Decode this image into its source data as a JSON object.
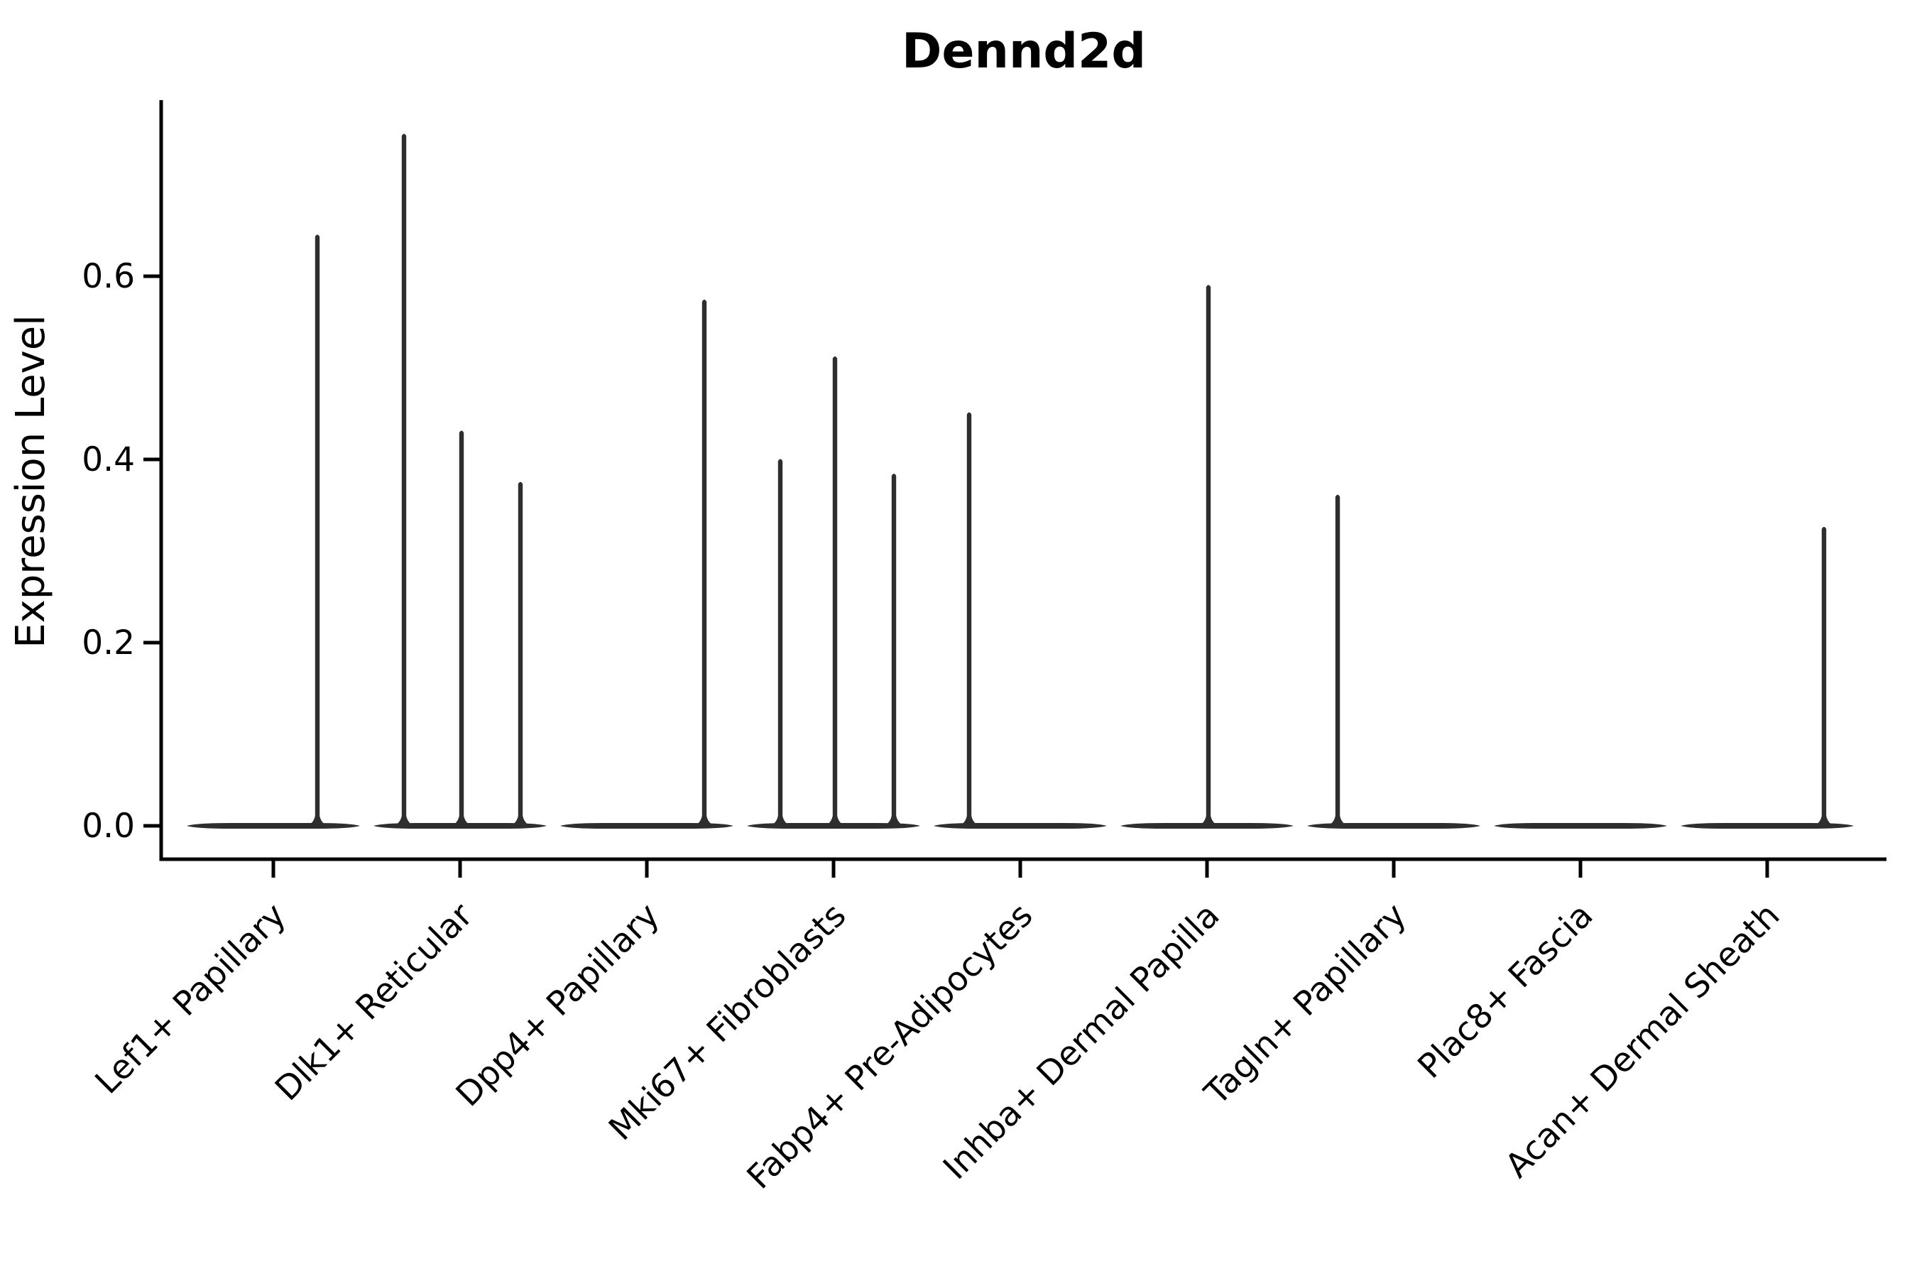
{
  "figure": {
    "kind": "violin-plot"
  },
  "chart_data": {
    "type": "violin",
    "title": "Dennd2d",
    "xlabel": "",
    "ylabel": "Expression Level",
    "categories": [
      "Lef1+ Papillary",
      "Dlk1+ Reticular",
      "Dpp4+ Papillary",
      "Mki67+ Fibroblasts",
      "Fabp4+ Pre-Adipocytes",
      "Inhba+ Dermal Papilla",
      "Tagln+ Papillary",
      "Plac8+ Fascia",
      "Acan+ Dermal Sheath"
    ],
    "yticks": [
      0.0,
      0.2,
      0.4,
      0.6
    ],
    "ytick_labels": [
      "0.0",
      "0.2",
      "0.4",
      "0.6"
    ],
    "ylim": [
      -0.036,
      0.792
    ],
    "grid": false,
    "legend": "none",
    "description": "Each category shows a collapsed violin at expression 0 with thin vertical spikes marking rare expressing cells; spike offset is horizontal jitter in px from the category center, value is the expression level at the spike tip.",
    "spikes": [
      [
        {
          "offset": 62,
          "value": 0.645
        }
      ],
      [
        {
          "offset": -79,
          "value": 0.755
        },
        {
          "offset": 2,
          "value": 0.431
        },
        {
          "offset": 85,
          "value": 0.375
        }
      ],
      [
        {
          "offset": 81,
          "value": 0.574
        }
      ],
      [
        {
          "offset": -75,
          "value": 0.4
        },
        {
          "offset": 2,
          "value": 0.512
        },
        {
          "offset": 85,
          "value": 0.384
        }
      ],
      [
        {
          "offset": -72,
          "value": 0.451
        }
      ],
      [
        {
          "offset": 2,
          "value": 0.59
        }
      ],
      [
        {
          "offset": -79,
          "value": 0.361
        }
      ],
      [],
      [
        {
          "offset": 80,
          "value": 0.326
        }
      ]
    ],
    "colors": {
      "ink": "#2e2e2e",
      "axis": "#000000",
      "background": "#ffffff"
    }
  }
}
